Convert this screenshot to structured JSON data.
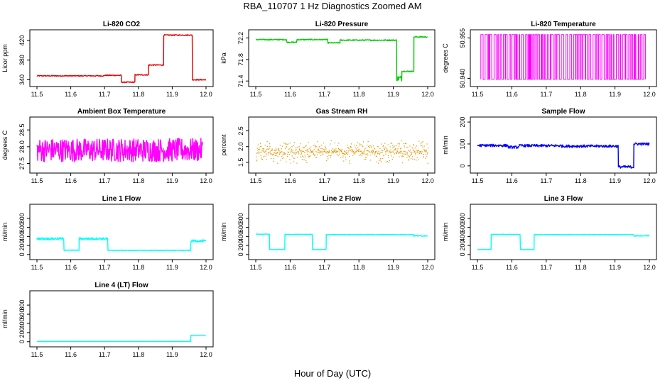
{
  "figure": {
    "title": "RBA_110707  1 Hz Diagnostics Zoomed AM",
    "xlabel": "Hour of Day (UTC)"
  },
  "chart_data": [
    {
      "type": "line",
      "title": "Li-820 CO2",
      "ylabel": "Licor ppm",
      "color": "#e60000",
      "xlim": [
        11.5,
        12.0
      ],
      "ylim": [
        332,
        436
      ],
      "xticks": [
        "11.5",
        "11.6",
        "11.7",
        "11.8",
        "11.9",
        "12.0"
      ],
      "yticks": [
        "340",
        "380",
        "420"
      ],
      "segments": [
        {
          "x": [
            11.5,
            11.7
          ],
          "y": 348,
          "noise": 1
        },
        {
          "x": [
            11.7,
            11.75
          ],
          "y": 349,
          "noise": 1
        },
        {
          "x": [
            11.75,
            11.79
          ],
          "y": 335,
          "noise": 1
        },
        {
          "x": [
            11.79,
            11.83
          ],
          "y": 350,
          "noise": 1
        },
        {
          "x": [
            11.83,
            11.875
          ],
          "y": 370,
          "noise": 1
        },
        {
          "x": [
            11.875,
            11.96
          ],
          "y": 431,
          "noise": 1
        },
        {
          "x": [
            11.96,
            12.0
          ],
          "y": 340,
          "noise": 1
        }
      ]
    },
    {
      "type": "line",
      "title": "Li-820 Pressure",
      "ylabel": "kPa",
      "color": "#00cc00",
      "xlim": [
        11.5,
        12.0
      ],
      "ylim": [
        71.35,
        72.3
      ],
      "xticks": [
        "11.5",
        "11.6",
        "11.7",
        "11.8",
        "11.9",
        "12.0"
      ],
      "yticks": [
        "71.4",
        "71.8",
        "72.2"
      ],
      "segments": [
        {
          "x": [
            11.5,
            11.59
          ],
          "y": 72.17,
          "noise": 0.01
        },
        {
          "x": [
            11.59,
            11.62
          ],
          "y": 72.12,
          "noise": 0.01
        },
        {
          "x": [
            11.62,
            11.71
          ],
          "y": 72.17,
          "noise": 0.01
        },
        {
          "x": [
            11.71,
            11.745
          ],
          "y": 72.11,
          "noise": 0.01
        },
        {
          "x": [
            11.745,
            11.91
          ],
          "y": 72.16,
          "noise": 0.01
        },
        {
          "x": [
            11.91,
            11.925
          ],
          "y": 71.45,
          "noise": 0.05
        },
        {
          "x": [
            11.925,
            11.96
          ],
          "y": 71.58,
          "noise": 0.01
        },
        {
          "x": [
            11.96,
            12.0
          ],
          "y": 72.22,
          "noise": 0.01
        }
      ]
    },
    {
      "type": "line",
      "title": "Li-820 Temperature",
      "ylabel": "degrees C",
      "color": "#ff00ff",
      "xlim": [
        11.5,
        12.0
      ],
      "ylim": [
        50.938,
        50.957
      ],
      "xticks": [
        "11.5",
        "11.6",
        "11.7",
        "11.8",
        "11.9",
        "12.0"
      ],
      "yticks": [
        "50.940",
        "50.955"
      ],
      "pattern": "binary",
      "levels": [
        50.9396,
        50.9563
      ],
      "note_range": [
        11.51,
        11.99
      ]
    },
    {
      "type": "line",
      "title": "Ambient Box Temperature",
      "ylabel": "degrees C",
      "color": "#ff00ff",
      "xlim": [
        11.5,
        12.0
      ],
      "ylim": [
        27.3,
        28.8
      ],
      "xticks": [
        "11.5",
        "11.6",
        "11.7",
        "11.8",
        "11.9",
        "12.0"
      ],
      "yticks": [
        "27.5",
        "28.0",
        "28.5"
      ],
      "segments": [
        {
          "x": [
            11.5,
            11.99
          ],
          "y": 27.9,
          "noise": 0.35
        }
      ]
    },
    {
      "type": "scatter",
      "title": "Gas Stream RH",
      "ylabel": "percent",
      "color": "#e69500",
      "xlim": [
        11.5,
        12.0
      ],
      "ylim": [
        1.25,
        2.85
      ],
      "xticks": [
        "11.5",
        "11.6",
        "11.7",
        "11.8",
        "11.9",
        "12.0"
      ],
      "yticks": [
        "1.5",
        "2.0",
        "2.5"
      ],
      "segments": [
        {
          "x": [
            11.5,
            12.0
          ],
          "y": 1.85,
          "noise": 0.4
        }
      ]
    },
    {
      "type": "line",
      "title": "Sample Flow",
      "ylabel": "ml/min",
      "color": "#0000ff",
      "xlim": [
        11.5,
        12.0
      ],
      "ylim": [
        -20,
        210
      ],
      "xticks": [
        "11.5",
        "11.6",
        "11.7",
        "11.8",
        "11.9",
        "12.0"
      ],
      "yticks": [
        "0",
        "100",
        "200"
      ],
      "segments": [
        {
          "x": [
            11.5,
            11.59
          ],
          "y": 93,
          "noise": 6
        },
        {
          "x": [
            11.59,
            11.62
          ],
          "y": 85,
          "noise": 6
        },
        {
          "x": [
            11.62,
            11.745
          ],
          "y": 92,
          "noise": 6
        },
        {
          "x": [
            11.745,
            11.91
          ],
          "y": 90,
          "noise": 6
        },
        {
          "x": [
            11.91,
            11.955
          ],
          "y": -5,
          "noise": 6
        },
        {
          "x": [
            11.955,
            12.0
          ],
          "y": 100,
          "noise": 6
        }
      ]
    },
    {
      "type": "line",
      "title": "Line 1 Flow",
      "ylabel": "ml/min",
      "color": "#00ffff",
      "xlim": [
        11.5,
        12.0
      ],
      "ylim": [
        -50,
        1050
      ],
      "xticks": [
        "11.5",
        "11.6",
        "11.7",
        "11.8",
        "11.9",
        "12.0"
      ],
      "yticks": [
        "0",
        "200",
        "400",
        "600",
        "800"
      ],
      "segments": [
        {
          "x": [
            11.5,
            11.58
          ],
          "y": 350,
          "noise": 25
        },
        {
          "x": [
            11.58,
            11.625
          ],
          "y": 95,
          "noise": 8
        },
        {
          "x": [
            11.625,
            11.71
          ],
          "y": 350,
          "noise": 25
        },
        {
          "x": [
            11.71,
            11.955
          ],
          "y": 90,
          "noise": 8
        },
        {
          "x": [
            11.955,
            12.0
          ],
          "y": 300,
          "noise": 25
        }
      ]
    },
    {
      "type": "line",
      "title": "Line 2 Flow",
      "ylabel": "ml/min",
      "color": "#00ffff",
      "xlim": [
        11.5,
        12.0
      ],
      "ylim": [
        -50,
        1050
      ],
      "xticks": [
        "11.5",
        "11.6",
        "11.7",
        "11.8",
        "11.9",
        "12.0"
      ],
      "yticks": [
        "0",
        "200",
        "400",
        "600",
        "800"
      ],
      "segments": [
        {
          "x": [
            11.5,
            11.54
          ],
          "y": 450,
          "noise": 5
        },
        {
          "x": [
            11.54,
            11.585
          ],
          "y": 110,
          "noise": 5
        },
        {
          "x": [
            11.585,
            11.665
          ],
          "y": 445,
          "noise": 5
        },
        {
          "x": [
            11.665,
            11.705
          ],
          "y": 110,
          "noise": 5
        },
        {
          "x": [
            11.705,
            11.96
          ],
          "y": 440,
          "noise": 5
        },
        {
          "x": [
            11.96,
            12.0
          ],
          "y": 415,
          "noise": 12
        }
      ]
    },
    {
      "type": "line",
      "title": "Line 3 Flow",
      "ylabel": "ml/min",
      "color": "#00ffff",
      "xlim": [
        11.5,
        12.0
      ],
      "ylim": [
        -50,
        1050
      ],
      "xticks": [
        "11.5",
        "11.6",
        "11.7",
        "11.8",
        "11.9",
        "12.0"
      ],
      "yticks": [
        "0",
        "200",
        "400",
        "600",
        "800"
      ],
      "segments": [
        {
          "x": [
            11.5,
            11.54
          ],
          "y": 110,
          "noise": 5
        },
        {
          "x": [
            11.54,
            11.625
          ],
          "y": 445,
          "noise": 5
        },
        {
          "x": [
            11.625,
            11.665
          ],
          "y": 110,
          "noise": 5
        },
        {
          "x": [
            11.665,
            11.955
          ],
          "y": 440,
          "noise": 5
        },
        {
          "x": [
            11.955,
            12.0
          ],
          "y": 415,
          "noise": 12
        }
      ]
    },
    {
      "type": "line",
      "title": "Line 4 (LT) Flow",
      "ylabel": "ml/min",
      "color": "#00ffff",
      "xlim": [
        11.5,
        12.0
      ],
      "ylim": [
        -50,
        1050
      ],
      "xticks": [
        "11.5",
        "11.6",
        "11.7",
        "11.8",
        "11.9",
        "12.0"
      ],
      "yticks": [
        "0",
        "200",
        "400",
        "600",
        "800"
      ],
      "segments": [
        {
          "x": [
            11.5,
            11.955
          ],
          "y": 5,
          "noise": 2
        },
        {
          "x": [
            11.955,
            12.0
          ],
          "y": 140,
          "noise": 3
        }
      ]
    }
  ]
}
